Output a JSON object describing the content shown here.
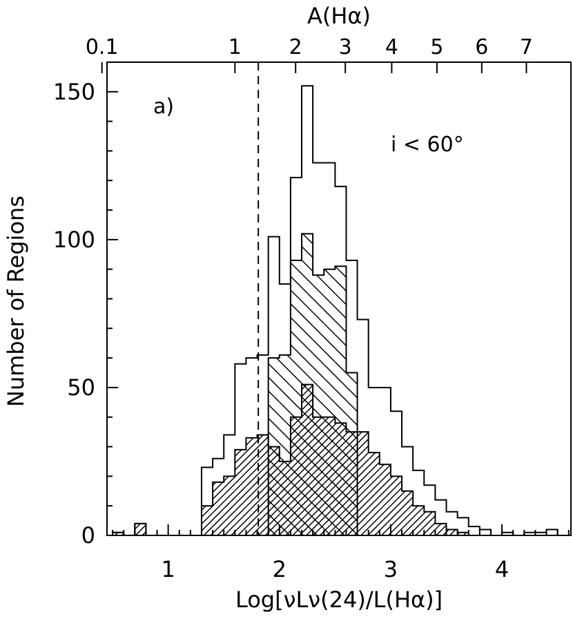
{
  "chart_data": {
    "type": "histogram",
    "panel_label": "a)",
    "annotation": "i < 60°",
    "xlabel": "Log[νLν(24)/L(Hα)]",
    "ylabel": "Number of Regions",
    "top_axis_label": "A(Hα)",
    "xlim": [
      0.45,
      4.62
    ],
    "ylim": [
      0,
      160
    ],
    "x_ticks": [
      1,
      2,
      3,
      4
    ],
    "x_tick_labels": [
      "1",
      "2",
      "3",
      "4"
    ],
    "y_ticks": [
      0,
      50,
      100,
      150
    ],
    "y_tick_labels": [
      "0",
      "50",
      "100",
      "150"
    ],
    "top_ticks": [
      0.1,
      1,
      2,
      3,
      4,
      5,
      6,
      7
    ],
    "top_tick_labels": [
      "0.1",
      "1",
      "2",
      "3",
      "4",
      "5",
      "6",
      "7"
    ],
    "median_line_x": 1.81,
    "bin_width": 0.1,
    "bin_edges_start": 0.5,
    "series": [
      {
        "fill": "none",
        "values": [
          1,
          0,
          4,
          0,
          0,
          0,
          0,
          0,
          23,
          26,
          34,
          58,
          60,
          61,
          101,
          85,
          121,
          152,
          126,
          126,
          118,
          93,
          73,
          50,
          50,
          42,
          30,
          22,
          17,
          12,
          8,
          6,
          3,
          2,
          0,
          1,
          0,
          1,
          1,
          2
        ]
      },
      {
        "fill": "sparse-hatch",
        "values": [
          0,
          0,
          0,
          0,
          0,
          0,
          0,
          0,
          0,
          0,
          0,
          0,
          0,
          0,
          60,
          61,
          93,
          102,
          88,
          90,
          91,
          55,
          0,
          0,
          0,
          0,
          0,
          0,
          0,
          0,
          0,
          0,
          0,
          0,
          0,
          0,
          0,
          0,
          0,
          0
        ]
      },
      {
        "fill": "dense-hatch",
        "values": [
          1,
          0,
          4,
          0,
          0,
          0,
          0,
          0,
          10,
          18,
          20,
          29,
          33,
          34,
          30,
          25,
          40,
          51,
          40,
          40,
          38,
          35,
          35,
          28,
          24,
          20,
          15,
          10,
          8,
          4,
          2,
          1,
          0,
          0,
          0,
          0,
          0,
          0,
          0,
          0
        ]
      }
    ]
  }
}
